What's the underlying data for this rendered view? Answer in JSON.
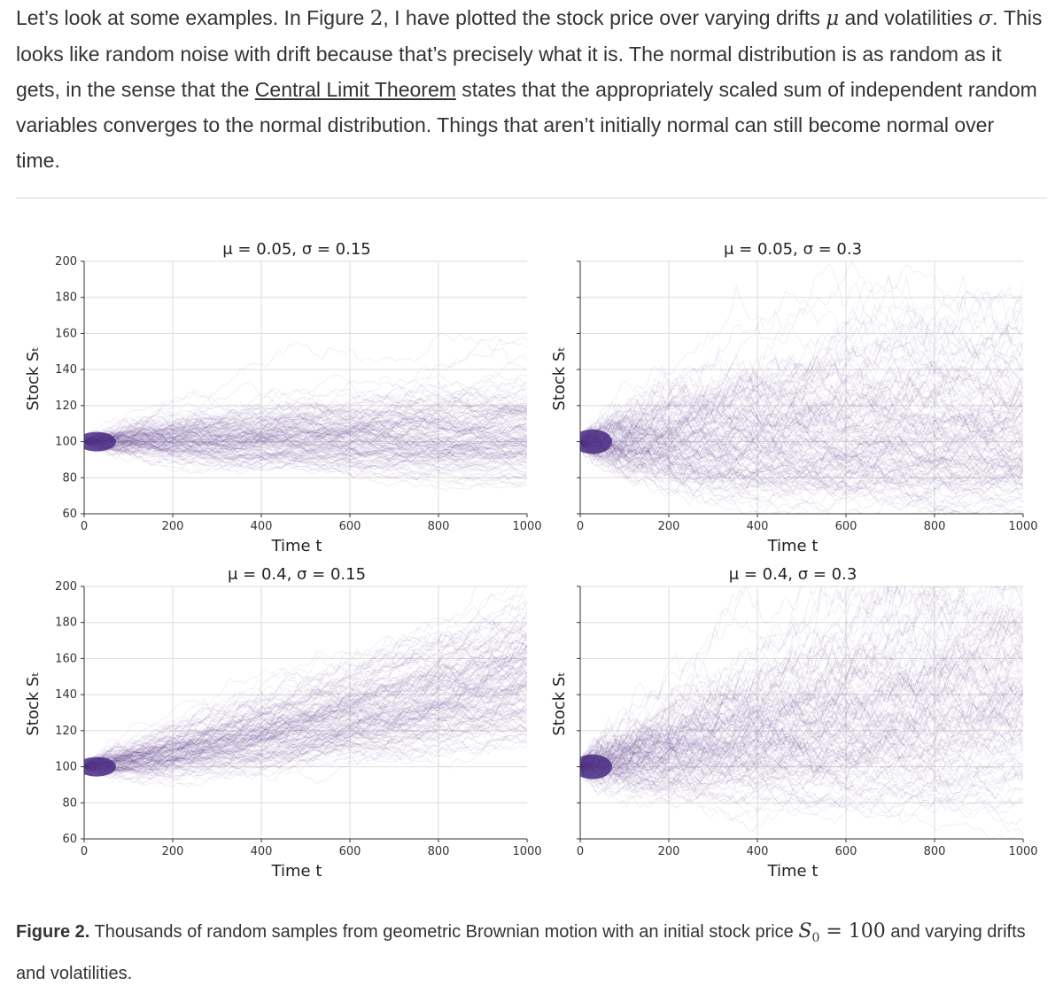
{
  "intro": {
    "p1": "Let’s look at some examples. In Figure ",
    "fig_num": "2",
    "p2": ", I have plotted the stock price over varying drifts ",
    "mu": "μ",
    "p3": " and volatilities ",
    "sigma": "σ",
    "p4": ". This looks like random noise with drift because that’s precisely what it is. The normal distribution is as random as it gets, in the sense that the ",
    "link": "Central Limit Theorem",
    "p5": " states that the appropriately scaled sum of independent random variables converges to the normal distribution. Things that aren’t initially normal can still become normal over time."
  },
  "caption": {
    "label": "Figure 2.",
    "text1": " Thousands of random samples from geometric Brownian motion with an initial stock price ",
    "s0": "S",
    "s0_sub": "0",
    "eq": " = 100",
    "text2": " and varying drifts and volatilities."
  },
  "colors": {
    "path": "#4a2c82",
    "grid": "#dcdcdc",
    "axis": "#333333"
  },
  "chart_data": [
    {
      "type": "line",
      "title": "μ = 0.05, σ = 0.15",
      "mu": 0.05,
      "sigma": 0.15,
      "s0": 100,
      "xlabel": "Time t",
      "ylabel": "Stock S_t",
      "xlim": [
        0,
        1000
      ],
      "ylim": [
        60,
        200
      ],
      "xticks": [
        0,
        200,
        400,
        600,
        800,
        1000
      ],
      "yticks": [
        60,
        80,
        100,
        120,
        140,
        160,
        180,
        200
      ],
      "show_y_ticklabels": true
    },
    {
      "type": "line",
      "title": "μ = 0.05, σ = 0.3",
      "mu": 0.05,
      "sigma": 0.3,
      "s0": 100,
      "xlabel": "Time t",
      "ylabel": "Stock S_t",
      "xlim": [
        0,
        1000
      ],
      "ylim": [
        60,
        200
      ],
      "xticks": [
        0,
        200,
        400,
        600,
        800,
        1000
      ],
      "yticks": [
        60,
        80,
        100,
        120,
        140,
        160,
        180,
        200
      ],
      "show_y_ticklabels": false
    },
    {
      "type": "line",
      "title": "μ = 0.4, σ = 0.15",
      "mu": 0.4,
      "sigma": 0.15,
      "s0": 100,
      "xlabel": "Time t",
      "ylabel": "Stock S_t",
      "xlim": [
        0,
        1000
      ],
      "ylim": [
        60,
        200
      ],
      "xticks": [
        0,
        200,
        400,
        600,
        800,
        1000
      ],
      "yticks": [
        60,
        80,
        100,
        120,
        140,
        160,
        180,
        200
      ],
      "show_y_ticklabels": true
    },
    {
      "type": "line",
      "title": "μ = 0.4, σ = 0.3",
      "mu": 0.4,
      "sigma": 0.3,
      "s0": 100,
      "xlabel": "Time t",
      "ylabel": "Stock S_t",
      "xlim": [
        0,
        1000
      ],
      "ylim": [
        60,
        200
      ],
      "xticks": [
        0,
        200,
        400,
        600,
        800,
        1000
      ],
      "yticks": [
        60,
        80,
        100,
        120,
        140,
        160,
        180,
        200
      ],
      "show_y_ticklabels": false
    }
  ]
}
